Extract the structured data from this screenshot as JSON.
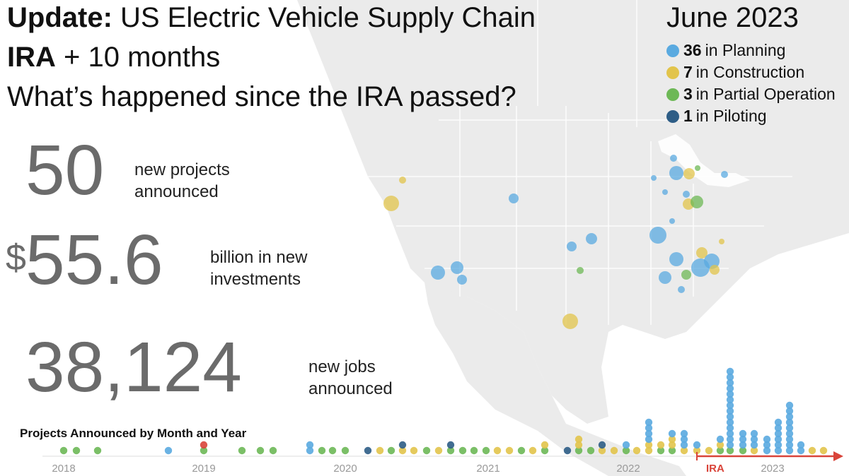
{
  "title": {
    "line1_bold": "Update:",
    "line1_rest": " US Electric Vehicle Supply Chain",
    "line2_bold": "IRA",
    "line2_rest": " + 10 months",
    "line3": "What’s happened since the IRA passed?"
  },
  "date": "June 2023",
  "legend": [
    {
      "count": "36",
      "label": "in Planning",
      "color": "#5aaae0"
    },
    {
      "count": "7",
      "label": "in Construction",
      "color": "#e2c44b"
    },
    {
      "count": "3",
      "label": "in Partial Operation",
      "color": "#6db856"
    },
    {
      "count": "1",
      "label": "in Piloting",
      "color": "#2e5d86"
    }
  ],
  "stats": {
    "projects": {
      "value": "50",
      "label": "new projects announced"
    },
    "investment": {
      "currency": "$",
      "value": "55.6",
      "label": "billion in new investments"
    },
    "jobs": {
      "value": "38,124",
      "label": "new jobs announced"
    }
  },
  "timeline": {
    "title": "Projects Announced by Month and Year",
    "years": [
      "2018",
      "2019",
      "2020",
      "2021",
      "2022",
      "2023"
    ],
    "ira_label": "IRA",
    "arrow_color": "#d9443a"
  },
  "colors": {
    "planning": "#5aaae0",
    "construction": "#e2c44b",
    "partial_operation": "#6db856",
    "piloting": "#2e5d86",
    "map_land": "#ebebeb",
    "map_border": "#ffffff"
  }
}
